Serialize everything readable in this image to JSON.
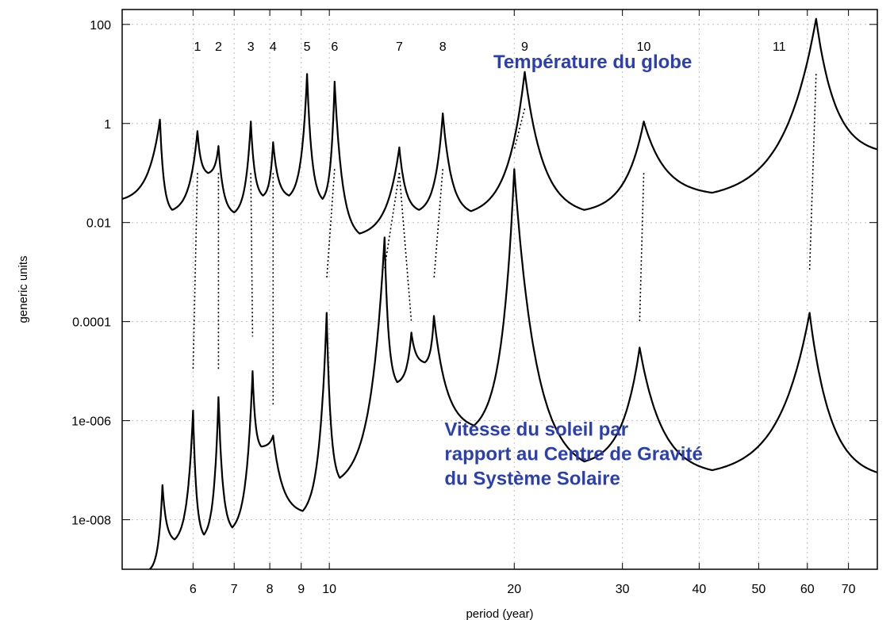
{
  "chart_data": {
    "type": "line",
    "xlabel": "period  (year)",
    "ylabel": "generic units",
    "x_scale": "log",
    "y_scale": "log",
    "xlim": [
      4.6,
      78
    ],
    "ylim": [
      1e-09,
      200
    ],
    "x_ticks": [
      6,
      7,
      8,
      9,
      10,
      20,
      30,
      40,
      50,
      60,
      70
    ],
    "x_tick_labels": [
      "6",
      "7",
      "8",
      "9",
      "10",
      "20",
      "30",
      "40",
      "50",
      "60",
      "70"
    ],
    "y_ticks": [
      100,
      1,
      0.01,
      0.0001,
      1e-06,
      1e-08
    ],
    "y_tick_labels": [
      "100",
      "1",
      "0.01",
      "0.0001",
      "1e-006",
      "1e-008"
    ],
    "grid": true,
    "series": [
      {
        "name": "Température du globe",
        "color": "#000000",
        "peaks": [
          {
            "x": 5.3,
            "y": 1.2
          },
          {
            "x": 6.1,
            "y": 0.7
          },
          {
            "x": 6.6,
            "y": 0.35
          },
          {
            "x": 7.45,
            "y": 1.1
          },
          {
            "x": 8.1,
            "y": 0.42
          },
          {
            "x": 9.2,
            "y": 10
          },
          {
            "x": 10.2,
            "y": 7
          },
          {
            "x": 13.0,
            "y": 0.33
          },
          {
            "x": 15.3,
            "y": 1.6
          },
          {
            "x": 20.8,
            "y": 11
          },
          {
            "x": 32.5,
            "y": 1.1
          },
          {
            "x": 62.0,
            "y": 130
          }
        ],
        "troughs": [
          {
            "x": 4.6,
            "y": 0.03
          },
          {
            "x": 5.55,
            "y": 0.018
          },
          {
            "x": 6.35,
            "y": 0.1
          },
          {
            "x": 7.0,
            "y": 0.016
          },
          {
            "x": 7.8,
            "y": 0.035
          },
          {
            "x": 8.6,
            "y": 0.035
          },
          {
            "x": 9.75,
            "y": 0.03
          },
          {
            "x": 11.2,
            "y": 0.006
          },
          {
            "x": 14.0,
            "y": 0.018
          },
          {
            "x": 17.0,
            "y": 0.017
          },
          {
            "x": 26.0,
            "y": 0.018
          },
          {
            "x": 42.0,
            "y": 0.04
          },
          {
            "x": 78.0,
            "y": 0.3
          }
        ]
      },
      {
        "name": "Vitesse du soleil par rapport au Centre de Gravité du Système Solaire",
        "color": "#000000",
        "peaks": [
          {
            "x": 5.35,
            "y": 5e-08
          },
          {
            "x": 6.0,
            "y": 1.6e-06
          },
          {
            "x": 6.6,
            "y": 3e-06
          },
          {
            "x": 7.5,
            "y": 1e-05
          },
          {
            "x": 8.1,
            "y": 5e-07
          },
          {
            "x": 9.9,
            "y": 0.00015
          },
          {
            "x": 12.3,
            "y": 0.005
          },
          {
            "x": 13.6,
            "y": 6e-05
          },
          {
            "x": 14.8,
            "y": 0.00013
          },
          {
            "x": 20.0,
            "y": 0.12
          },
          {
            "x": 32.0,
            "y": 3e-05
          },
          {
            "x": 60.5,
            "y": 0.00015
          }
        ],
        "troughs": [
          {
            "x": 5.1,
            "y": 1e-09
          },
          {
            "x": 5.6,
            "y": 4e-09
          },
          {
            "x": 6.25,
            "y": 5e-09
          },
          {
            "x": 6.95,
            "y": 7e-09
          },
          {
            "x": 7.75,
            "y": 3e-07
          },
          {
            "x": 9.05,
            "y": 1.5e-08
          },
          {
            "x": 10.4,
            "y": 7e-08
          },
          {
            "x": 12.9,
            "y": 6e-06
          },
          {
            "x": 14.3,
            "y": 1.5e-05
          },
          {
            "x": 17.2,
            "y": 8e-07
          },
          {
            "x": 26.0,
            "y": 1.5e-07
          },
          {
            "x": 42.0,
            "y": 1e-07
          },
          {
            "x": 78.0,
            "y": 9e-08
          }
        ]
      }
    ],
    "peak_labels": [
      {
        "text": "1",
        "x": 6.1
      },
      {
        "text": "2",
        "x": 6.6
      },
      {
        "text": "3",
        "x": 7.45
      },
      {
        "text": "4",
        "x": 8.1
      },
      {
        "text": "5",
        "x": 9.2
      },
      {
        "text": "6",
        "x": 10.2
      },
      {
        "text": "7",
        "x": 13.0
      },
      {
        "text": "8",
        "x": 15.3
      },
      {
        "text": "9",
        "x": 20.8
      },
      {
        "text": "10",
        "x": 32.5
      },
      {
        "text": "11",
        "x": 54.0
      }
    ],
    "correspondences": [
      {
        "from": {
          "x": 6.1,
          "y": 0.1
        },
        "to": {
          "x": 6.0,
          "y": 1e-05
        }
      },
      {
        "from": {
          "x": 6.6,
          "y": 0.1
        },
        "to": {
          "x": 6.6,
          "y": 1e-05
        }
      },
      {
        "from": {
          "x": 7.45,
          "y": 0.1
        },
        "to": {
          "x": 7.5,
          "y": 5e-05
        }
      },
      {
        "from": {
          "x": 8.1,
          "y": 0.1
        },
        "to": {
          "x": 8.1,
          "y": 2e-06
        }
      },
      {
        "from": {
          "x": 10.2,
          "y": 0.12
        },
        "to": {
          "x": 9.9,
          "y": 0.0007
        }
      },
      {
        "from": {
          "x": 13.0,
          "y": 0.1
        },
        "to": {
          "x": 12.3,
          "y": 0.0012
        }
      },
      {
        "from": {
          "x": 13.0,
          "y": 0.1
        },
        "to": {
          "x": 13.6,
          "y": 0.0001
        }
      },
      {
        "from": {
          "x": 15.3,
          "y": 0.12
        },
        "to": {
          "x": 14.8,
          "y": 0.0007
        }
      },
      {
        "from": {
          "x": 20.8,
          "y": 2
        },
        "to": {
          "x": 20.0,
          "y": 0.3
        }
      },
      {
        "from": {
          "x": 32.5,
          "y": 0.1
        },
        "to": {
          "x": 32.0,
          "y": 0.0001
        }
      },
      {
        "from": {
          "x": 62.0,
          "y": 10
        },
        "to": {
          "x": 60.5,
          "y": 0.001
        }
      }
    ],
    "annotations": [
      {
        "text": "Température du globe",
        "color": "#2b3fb0",
        "anchor": {
          "x": 18.5,
          "y": 13
        }
      },
      {
        "lines": [
          "Vitesse du soleil par",
          "rapport au Centre de Gravité",
          "du Système Solaire"
        ],
        "color": "#2b3fb0",
        "anchor": {
          "x": 15.4,
          "y": 5e-07
        }
      }
    ]
  }
}
